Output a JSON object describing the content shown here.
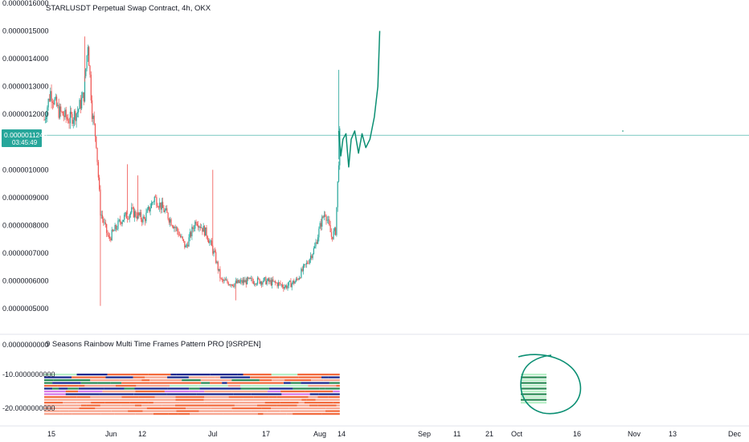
{
  "chart_title": "STARLUSDT Perpetual Swap Contract, 4h, OKX",
  "indicator_title": "9 Seasons Rainbow Multi Time Frames Pattern PRO [9SRPEN]",
  "price_badge": {
    "price": "0.0000011246",
    "countdown": "03:45:49"
  },
  "colors": {
    "up": "#26a69a",
    "down": "#ef5350",
    "drawing": "#0b8f73",
    "orange": "#f26a3d",
    "salmon": "#f7a58f",
    "navy": "#1a2a8f",
    "green": "#2e8b57",
    "lightgreen": "#b9efc7",
    "violet": "#d67be8"
  },
  "chart_data": [
    {
      "type": "candlestick",
      "title": "STARLUSDT Perpetual Swap Contract, 4h, OKX",
      "y_ticks": [
        "0.0000016000",
        "0.0000015000",
        "0.0000014000",
        "0.0000013000",
        "0.0000012000",
        "0.0000010000",
        "0.0000009000",
        "0.0000008000",
        "0.0000007000",
        "0.0000006000",
        "0.0000005000"
      ],
      "x_ticks": [
        "15",
        "Jun",
        "12",
        "Jul",
        "17",
        "Aug",
        "14",
        "Sep",
        "11",
        "21",
        "Oct",
        "16",
        "Nov",
        "13",
        "Dec"
      ],
      "ylim": [
        4.5e-07,
        1.6e-06
      ],
      "current_price": 1.1246e-06,
      "price_path": [
        {
          "d": 0,
          "p": 1.18e-06
        },
        {
          "d": 3,
          "p": 1.28e-06
        },
        {
          "d": 7,
          "p": 1.21e-06
        },
        {
          "d": 12,
          "p": 1.18e-06
        },
        {
          "d": 16,
          "p": 1.21e-06
        },
        {
          "d": 19,
          "p": 1.27e-06
        },
        {
          "d": 21,
          "p": 1.46e-06
        },
        {
          "d": 23,
          "p": 1.21e-06
        },
        {
          "d": 25,
          "p": 1.1e-06
        },
        {
          "d": 27,
          "p": 8.5e-07
        },
        {
          "d": 31,
          "p": 7.5e-07
        },
        {
          "d": 37,
          "p": 8.2e-07
        },
        {
          "d": 42,
          "p": 8.5e-07
        },
        {
          "d": 48,
          "p": 8.2e-07
        },
        {
          "d": 53,
          "p": 9e-07
        },
        {
          "d": 58,
          "p": 8.5e-07
        },
        {
          "d": 64,
          "p": 7.8e-07
        },
        {
          "d": 68,
          "p": 7.2e-07
        },
        {
          "d": 73,
          "p": 8.2e-07
        },
        {
          "d": 78,
          "p": 7.7e-07
        },
        {
          "d": 82,
          "p": 6.9e-07
        },
        {
          "d": 85,
          "p": 6e-07
        },
        {
          "d": 91,
          "p": 5.9e-07
        },
        {
          "d": 98,
          "p": 6e-07
        },
        {
          "d": 106,
          "p": 6e-07
        },
        {
          "d": 112,
          "p": 5.9e-07
        },
        {
          "d": 116,
          "p": 5.8e-07
        },
        {
          "d": 121,
          "p": 6e-07
        },
        {
          "d": 126,
          "p": 6.6e-07
        },
        {
          "d": 130,
          "p": 7.2e-07
        },
        {
          "d": 133,
          "p": 8.1e-07
        },
        {
          "d": 135,
          "p": 8.5e-07
        },
        {
          "d": 138,
          "p": 7.6e-07
        },
        {
          "d": 140,
          "p": 7.8e-07
        },
        {
          "d": 141,
          "p": 9.5e-07
        },
        {
          "d": 142,
          "p": 1.1246e-06
        }
      ],
      "spikes": [
        {
          "d": 19.5,
          "p": 1.48e-06
        },
        {
          "d": 27,
          "p": 5.1e-07
        },
        {
          "d": 40,
          "p": 1.02e-06
        },
        {
          "d": 45,
          "p": 9.8e-07
        },
        {
          "d": 81,
          "p": 1e-06
        },
        {
          "d": 92,
          "p": 5.3e-07
        },
        {
          "d": 141.5,
          "p": 1.36e-06
        }
      ],
      "projection": [
        {
          "d": 141.5,
          "p": 1.14e-06
        },
        {
          "d": 142.5,
          "p": 1.05e-06
        },
        {
          "d": 143.5,
          "p": 1.11e-06
        },
        {
          "d": 145,
          "p": 1.13e-06
        },
        {
          "d": 146.3,
          "p": 1.01e-06
        },
        {
          "d": 147.5,
          "p": 1.11e-06
        },
        {
          "d": 149.2,
          "p": 1.14e-06
        },
        {
          "d": 151,
          "p": 1.06e-06
        },
        {
          "d": 152.7,
          "p": 1.13e-06
        },
        {
          "d": 154.5,
          "p": 1.08e-06
        },
        {
          "d": 156.5,
          "p": 1.11e-06
        },
        {
          "d": 158.6,
          "p": 1.19e-06
        },
        {
          "d": 160.3,
          "p": 1.3e-06
        },
        {
          "d": 161.2,
          "p": 1.5e-06
        }
      ]
    },
    {
      "type": "heatmap",
      "title": "9 Seasons Rainbow Multi Time Frames Pattern PRO [9SRPEN]",
      "y_ticks": [
        "0.0000000000",
        "-10.0000000000",
        "-20.0000000000"
      ],
      "rows": 15,
      "x_range_days": [
        0,
        142
      ]
    }
  ]
}
